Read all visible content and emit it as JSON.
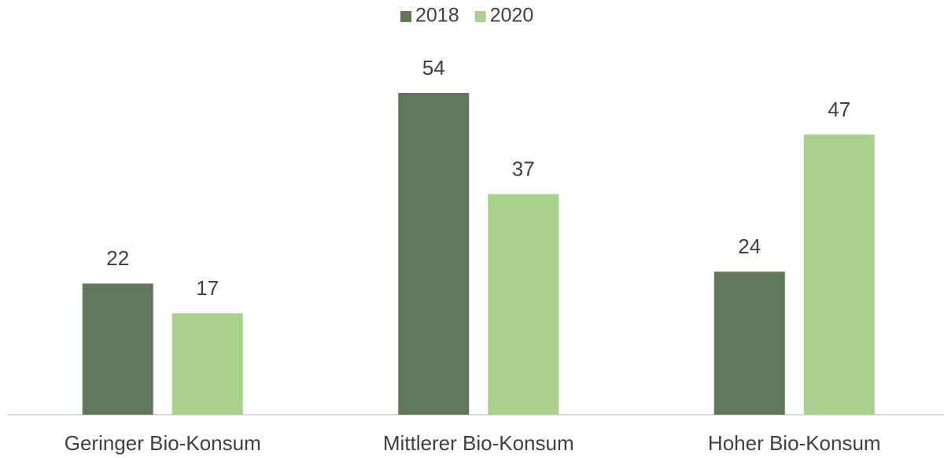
{
  "chart_data": {
    "type": "bar",
    "categories": [
      "Geringer Bio-Konsum",
      "Mittlerer Bio-Konsum",
      "Hoher Bio-Konsum"
    ],
    "series": [
      {
        "name": "2018",
        "color": "#61775c",
        "values": [
          22,
          54,
          24
        ]
      },
      {
        "name": "2020",
        "color": "#a9d18e",
        "values": [
          17,
          37,
          47
        ]
      }
    ],
    "legend": "top"
  }
}
